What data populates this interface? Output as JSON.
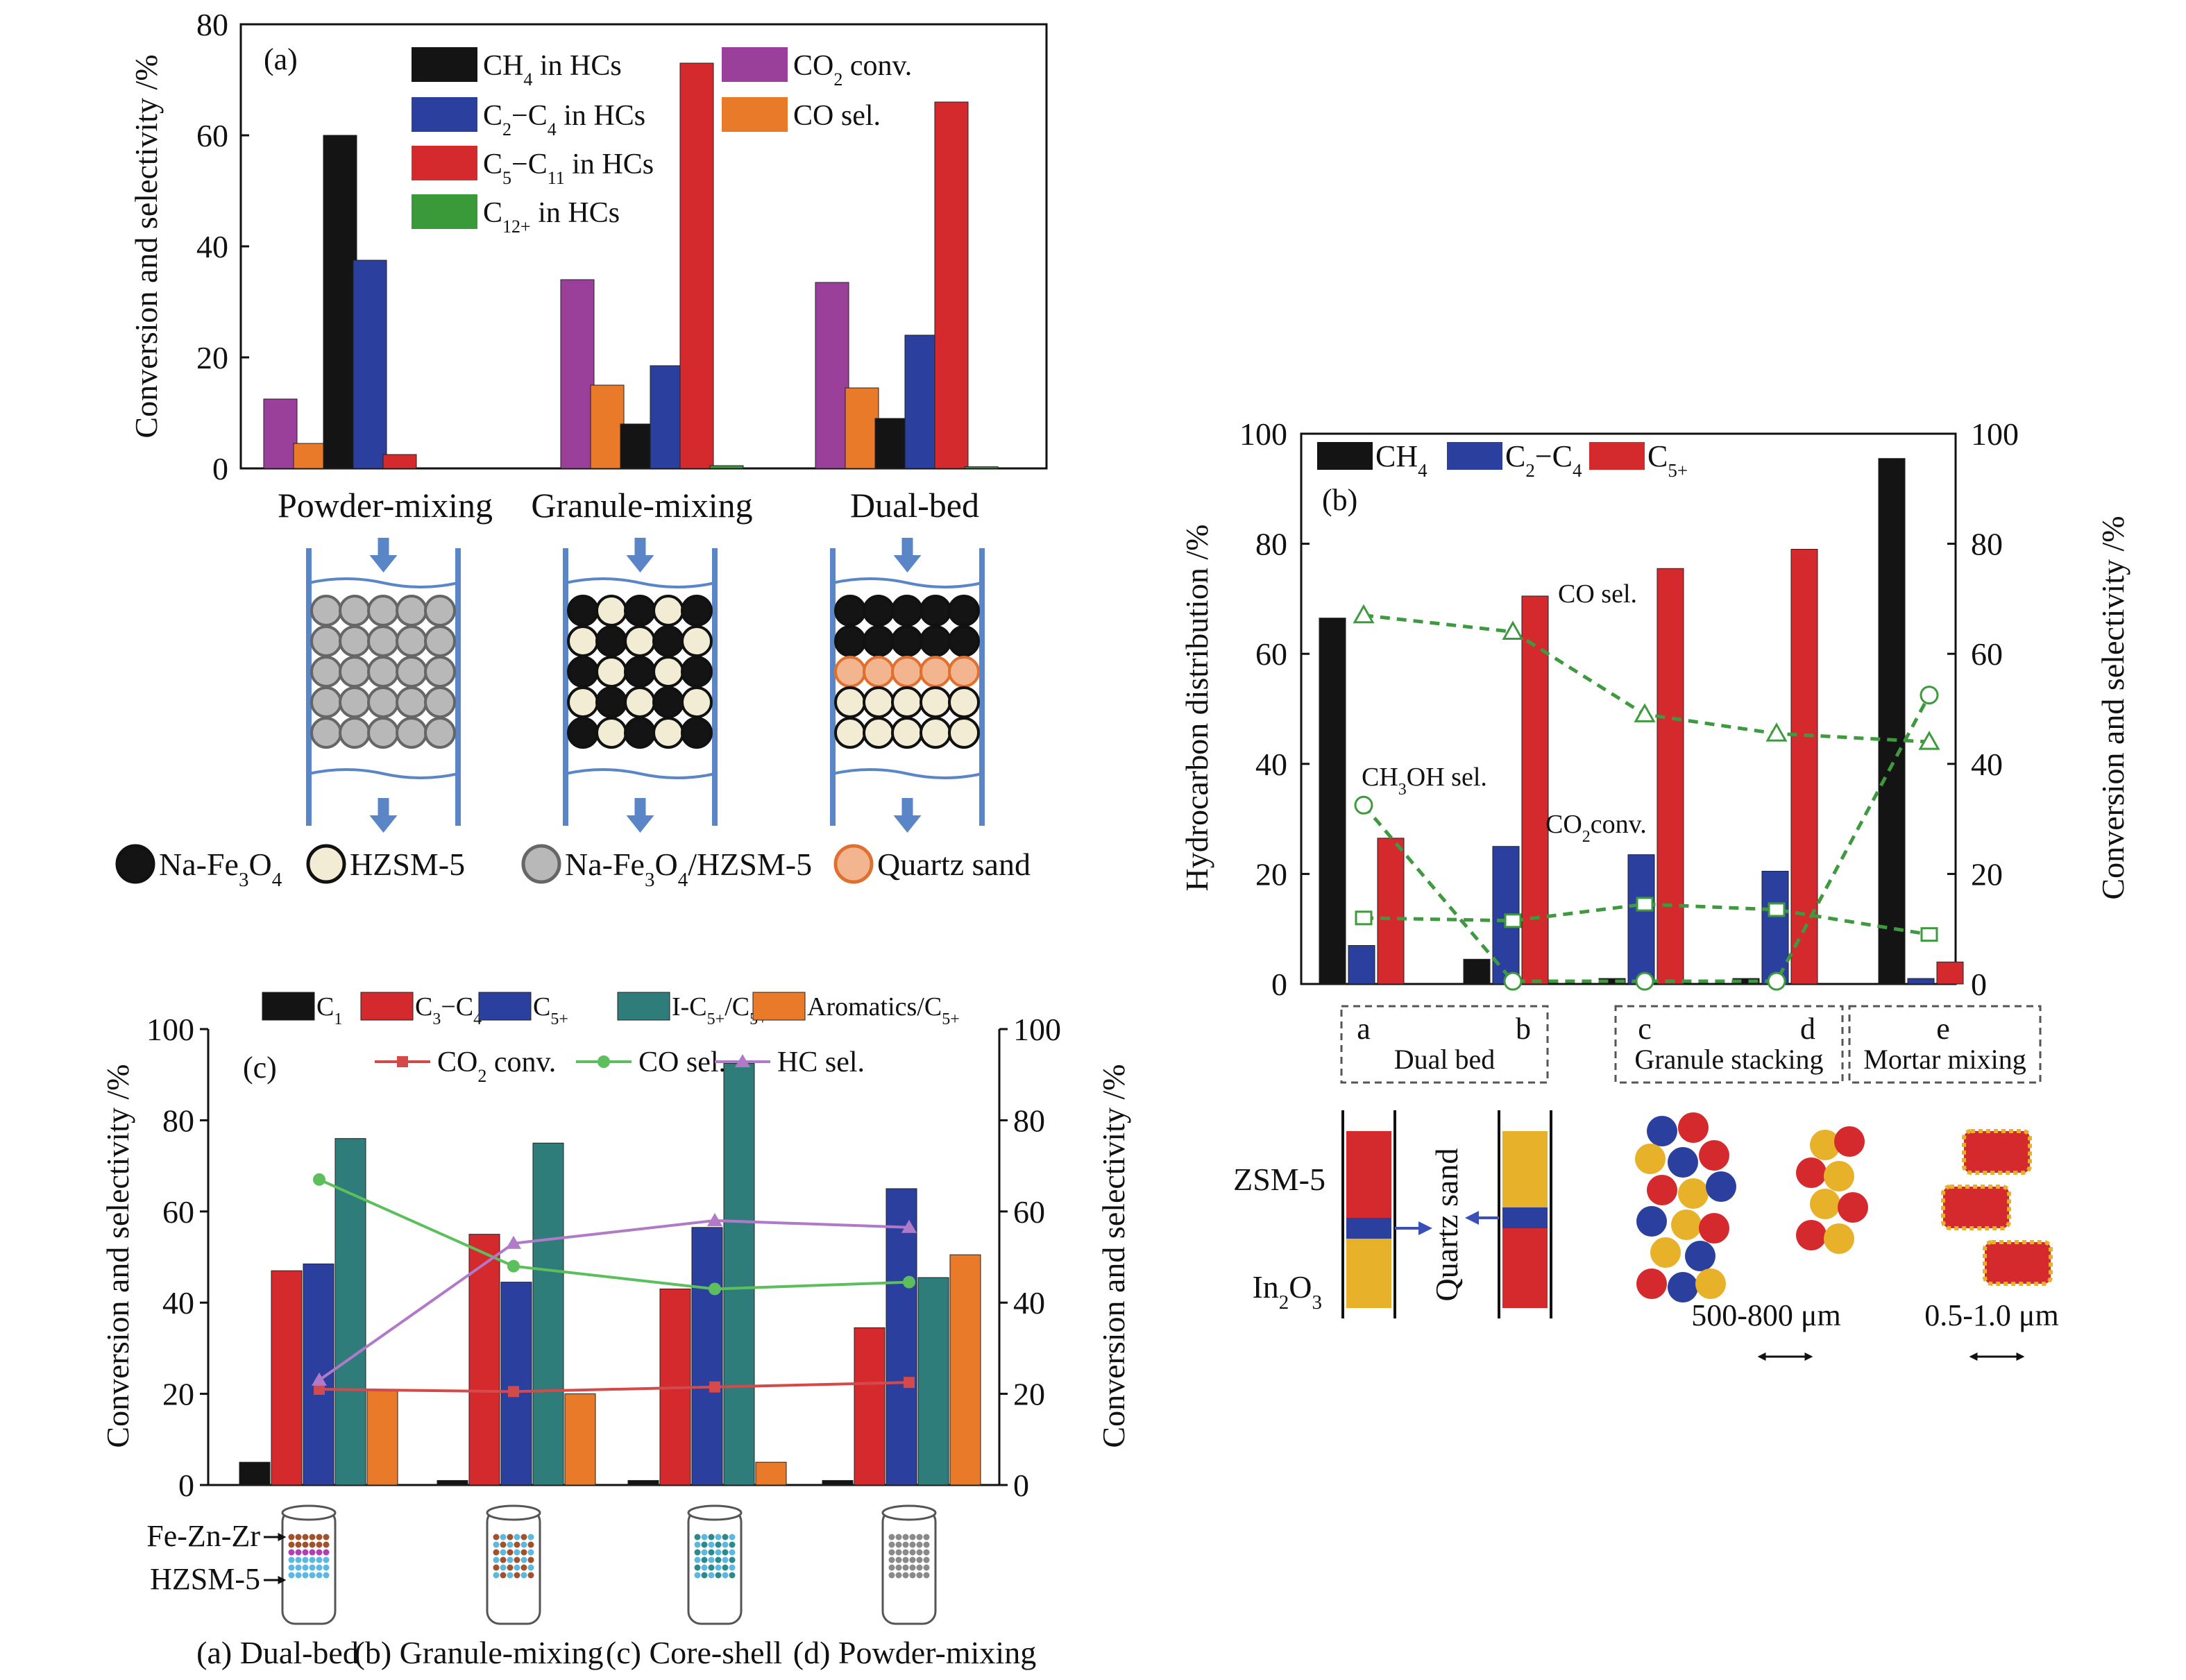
{
  "colors": {
    "black": "#141414",
    "blue": "#2b3f9e",
    "red": "#d42a2e",
    "green": "#3a9a3a",
    "purple": "#9a3f9a",
    "orange": "#e87a2a",
    "teal": "#2e7d7a",
    "dash_green": "#3f9a3f",
    "tube_blue": "#5a86c8",
    "sand": "#f3b58f",
    "sand_stroke": "#e07030",
    "cream": "#f2ecd4",
    "grey": "#b8b8b8",
    "gold": "#e8b12a",
    "c_red_line": "#d44a4a",
    "c_green_line": "#5cbf5c",
    "c_purple_line": "#b07ac8"
  },
  "chart_data": [
    {
      "id": "a",
      "type": "bar",
      "panel_label": "(a)",
      "ylabel": "Conversion and selectivity /%",
      "ylim": [
        0,
        80
      ],
      "yticks": [
        0,
        20,
        40,
        60,
        80
      ],
      "categories": [
        "Powder-mixing",
        "Granule-mixing",
        "Dual-bed"
      ],
      "series": [
        {
          "name": "CO2 conv.",
          "color": "purple",
          "values": [
            12.5,
            34,
            33.5
          ]
        },
        {
          "name": "CO sel.",
          "color": "orange",
          "values": [
            4.5,
            15,
            14.5
          ]
        },
        {
          "name": "CH4 in HCs",
          "color": "black",
          "values": [
            60,
            8,
            9
          ]
        },
        {
          "name": "C2-C4 in HCs",
          "color": "blue",
          "values": [
            37.5,
            18.5,
            24
          ]
        },
        {
          "name": "C5-C11 in HCs",
          "color": "red",
          "values": [
            2.5,
            73,
            66
          ]
        },
        {
          "name": "C12+ in HCs",
          "color": "green",
          "values": [
            0,
            0.5,
            0.3
          ]
        }
      ],
      "legend": [
        {
          "series": 2,
          "text": "CH",
          "sub": "4",
          "tail": " in HCs"
        },
        {
          "series": 3,
          "text": "C",
          "sub": "2",
          "tail": "−C",
          "sub2": "4",
          "tail2": " in HCs"
        },
        {
          "series": 4,
          "text": "C",
          "sub": "5",
          "tail": "−C",
          "sub2": "11",
          "tail2": " in HCs"
        },
        {
          "series": 5,
          "text": "C",
          "sub": "12+",
          "tail": " in HCs"
        },
        {
          "series": 0,
          "text": "CO",
          "sub": "2",
          "tail": " conv."
        },
        {
          "series": 1,
          "text": "CO sel.",
          "sub": "",
          "tail": ""
        }
      ],
      "schematic_legend": [
        {
          "kind": "black",
          "text": "Na-Fe",
          "sub": "3",
          "tail": "O",
          "sub2": "4",
          "tail2": ""
        },
        {
          "kind": "cream",
          "text": "HZSM-5",
          "sub": "",
          "tail": ""
        },
        {
          "kind": "grey",
          "text": "Na-Fe",
          "sub": "3",
          "tail": "O",
          "sub2": "4",
          "tail2": "/HZSM-5"
        },
        {
          "kind": "sand",
          "text": "Quartz sand",
          "sub": "",
          "tail": ""
        }
      ]
    },
    {
      "id": "b",
      "type": "bar",
      "panel_label": "(b)",
      "ylabel_left": "Hydrocarbon distribution /%",
      "ylabel_right": "Conversion and selectivity /%",
      "ylim": [
        0,
        100
      ],
      "yticks": [
        0,
        20,
        40,
        60,
        80,
        100
      ],
      "categories": [
        "a",
        "b",
        "c",
        "d",
        "e"
      ],
      "series": [
        {
          "name": "CH4",
          "color": "black",
          "values": [
            66.5,
            4.5,
            1,
            1,
            95.5
          ]
        },
        {
          "name": "C2-C4",
          "color": "blue",
          "values": [
            7,
            25,
            23.5,
            20.5,
            1
          ]
        },
        {
          "name": "C5+",
          "color": "red",
          "values": [
            26.5,
            70.5,
            75.5,
            79,
            4
          ]
        }
      ],
      "lines": [
        {
          "name": "CO sel.",
          "marker": "triangle",
          "values": [
            67,
            64,
            49,
            45.5,
            44
          ]
        },
        {
          "name": "CH3OH sel.",
          "marker": "circle",
          "values": [
            32.5,
            0.5,
            0.5,
            0.5,
            52.5
          ]
        },
        {
          "name": "CO2 conv.",
          "marker": "square",
          "values": [
            12,
            11.5,
            14.5,
            13.5,
            9
          ]
        }
      ],
      "annotations": {
        "co_sel": "CO sel.",
        "ch3oh": "CH",
        "ch3oh_sub": "3",
        "ch3oh_tail": "OH sel.",
        "co2": "CO",
        "co2_sub": "2",
        "co2_tail": "conv."
      },
      "legend": [
        {
          "series": 0,
          "text": "CH",
          "sub": "4",
          "tail": ""
        },
        {
          "series": 1,
          "text": "C",
          "sub": "2",
          "tail": "−C",
          "sub2": "4",
          "tail2": ""
        },
        {
          "series": 2,
          "text": "C",
          "sub": "5+",
          "tail": ""
        }
      ],
      "groups": [
        {
          "letters": [
            "a",
            "b"
          ],
          "label": "Dual bed"
        },
        {
          "letters": [
            "c",
            "d"
          ],
          "label": "Granule stacking"
        },
        {
          "letters": [
            "e"
          ],
          "label": "Mortar mixing"
        }
      ],
      "schematic": {
        "zsm5": "ZSM-5",
        "in2o3": "In",
        "in2o3_sub": "2",
        "in2o3_tail": "O",
        "in2o3_sub2": "3",
        "quartz": "Quartz sand",
        "size1": "500-800 μm",
        "size2": "0.5-1.0 μm"
      }
    },
    {
      "id": "c",
      "type": "bar",
      "panel_label": "(c)",
      "ylabel_left": "Conversion and selectivity /%",
      "ylabel_right": "Conversion and selectivity /%",
      "ylim": [
        0,
        100
      ],
      "yticks": [
        0,
        20,
        40,
        60,
        80,
        100
      ],
      "categories": [
        "(a) Dual-bed",
        "(b) Granule-mixing",
        "(c) Core-shell",
        "(d) Powder-mixing"
      ],
      "series": [
        {
          "name": "C1",
          "color": "black",
          "values": [
            5,
            1,
            1,
            1
          ]
        },
        {
          "name": "C3-C4",
          "color": "red",
          "values": [
            47,
            55,
            43,
            34.5
          ]
        },
        {
          "name": "C5+",
          "color": "blue",
          "values": [
            48.5,
            44.5,
            56.5,
            65
          ]
        },
        {
          "name": "I-C5+/C5+",
          "color": "teal",
          "values": [
            76,
            75,
            92.5,
            45.5
          ]
        },
        {
          "name": "Aromatics/C5+",
          "color": "orange",
          "values": [
            21,
            20,
            5,
            50.5
          ]
        }
      ],
      "lines": [
        {
          "name": "CO2 conv.",
          "color": "c_red_line",
          "marker": "square",
          "values": [
            21,
            20.5,
            21.5,
            22.5
          ]
        },
        {
          "name": "CO sel.",
          "color": "c_green_line",
          "marker": "circle",
          "values": [
            67,
            48,
            43,
            44.5
          ]
        },
        {
          "name": "HC sel.",
          "color": "c_purple_line",
          "marker": "triangle",
          "values": [
            23,
            53,
            58,
            56.5
          ]
        }
      ],
      "legend_bars": [
        {
          "series": 0,
          "text": "C",
          "sub": "1",
          "tail": ""
        },
        {
          "series": 1,
          "text": "C",
          "sub": "3",
          "tail": "−C",
          "sub2": "4",
          "tail2": ""
        },
        {
          "series": 2,
          "text": "C",
          "sub": "5+",
          "tail": ""
        },
        {
          "series": 3,
          "text": "I-C",
          "sub": "5+",
          "tail": "/C",
          "sub2": "5+",
          "tail2": ""
        },
        {
          "series": 4,
          "text": "Aromatics/C",
          "sub": "5+",
          "tail": ""
        }
      ],
      "legend_lines": [
        {
          "line": 0,
          "text": "CO",
          "sub": "2",
          "tail": " conv."
        },
        {
          "line": 1,
          "text": "CO sel.",
          "sub": "",
          "tail": ""
        },
        {
          "line": 2,
          "text": "HC sel.",
          "sub": "",
          "tail": ""
        }
      ],
      "schematic": {
        "fezn": "Fe-Zn-Zr",
        "hzsm": "HZSM-5"
      }
    }
  ]
}
